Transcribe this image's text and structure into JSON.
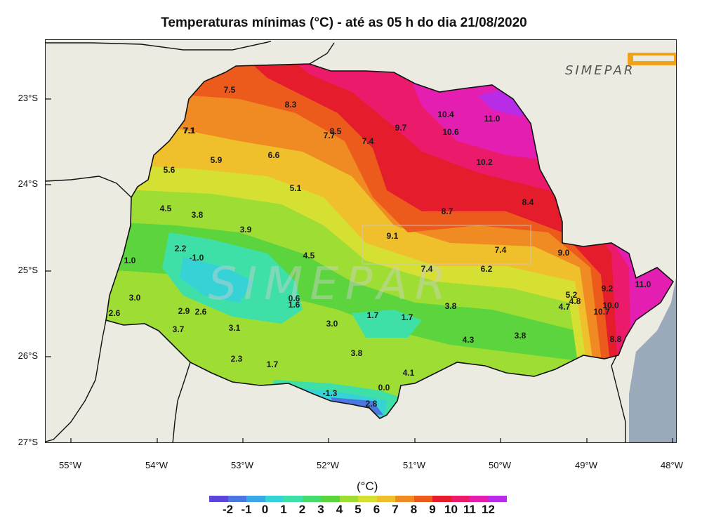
{
  "title": "Temperaturas mínimas (°C) - até as 05 h do dia 21/08/2020",
  "logo": "SIMEPAR",
  "watermark": "SIMEPAR",
  "unit_label": "(°C)",
  "lat_labels": [
    "23°S",
    "24°S",
    "25°S",
    "26°S",
    "27°S"
  ],
  "lon_labels": [
    "55°W",
    "54°W",
    "53°W",
    "52°W",
    "51°W",
    "50°W",
    "49°W",
    "48°W"
  ],
  "colorbar": {
    "labels": [
      "-2",
      "-1",
      "0",
      "1",
      "2",
      "3",
      "4",
      "5",
      "6",
      "7",
      "8",
      "9",
      "10",
      "11",
      "12"
    ],
    "colors": [
      "#5a46d8",
      "#4a78e0",
      "#3aa8e6",
      "#35d2d6",
      "#3fe0a8",
      "#45dc6e",
      "#5cd43e",
      "#9ede34",
      "#d6e032",
      "#f0c02c",
      "#f08a22",
      "#ec5a1c",
      "#e41c2c",
      "#ec1a6a",
      "#e41eb0",
      "#b82ce8"
    ]
  },
  "stations": [
    {
      "v": "7.1"
    },
    {
      "v": "7.5"
    },
    {
      "v": "8.3"
    },
    {
      "v": "8.5"
    },
    {
      "v": "7.7"
    },
    {
      "v": "9.7"
    },
    {
      "v": "10.4"
    },
    {
      "v": "11.0"
    },
    {
      "v": "10.6"
    },
    {
      "v": "7.4"
    },
    {
      "v": "10.2"
    },
    {
      "v": "7.1"
    },
    {
      "v": "5.9"
    },
    {
      "v": "6.6"
    },
    {
      "v": "5.6"
    },
    {
      "v": "5.1"
    },
    {
      "v": "8.7"
    },
    {
      "v": "8.4"
    },
    {
      "v": "4.5"
    },
    {
      "v": "3.8"
    },
    {
      "v": "3.9"
    },
    {
      "v": "9.1"
    },
    {
      "v": "2.2"
    },
    {
      "v": "-1.0"
    },
    {
      "v": "4.5"
    },
    {
      "v": "7.4"
    },
    {
      "v": "9.0"
    },
    {
      "v": "1.0"
    },
    {
      "v": "7.4"
    },
    {
      "v": "6.2"
    },
    {
      "v": "9.2"
    },
    {
      "v": "11.0"
    },
    {
      "v": "3.0"
    },
    {
      "v": "5.2"
    },
    {
      "v": "4.8"
    },
    {
      "v": "4.7"
    },
    {
      "v": "10.7"
    },
    {
      "v": "10.0"
    },
    {
      "v": "0.6"
    },
    {
      "v": "1.6"
    },
    {
      "v": "2.6"
    },
    {
      "v": "2.9"
    },
    {
      "v": "2.6"
    },
    {
      "v": "1.7"
    },
    {
      "v": "1.7"
    },
    {
      "v": "3.8"
    },
    {
      "v": "3.7"
    },
    {
      "v": "3.1"
    },
    {
      "v": "3.0"
    },
    {
      "v": "8.8"
    },
    {
      "v": "4.3"
    },
    {
      "v": "3.8"
    },
    {
      "v": "3.8"
    },
    {
      "v": "2.3"
    },
    {
      "v": "1.7"
    },
    {
      "v": "4.1"
    },
    {
      "v": "0.0"
    },
    {
      "v": "-1.3"
    },
    {
      "v": "2.8"
    }
  ]
}
